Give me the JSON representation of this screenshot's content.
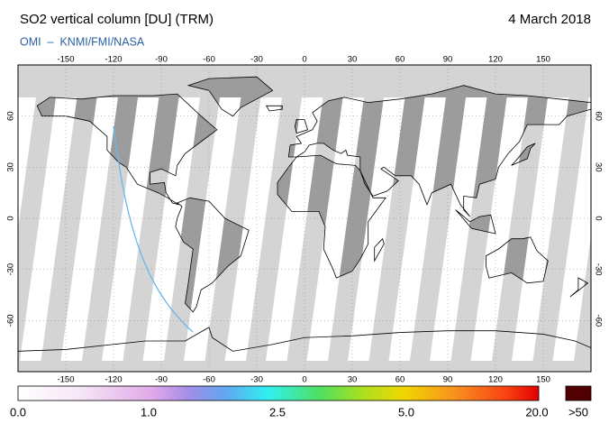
{
  "header": {
    "title": "SO2 vertical column [DU] (TRM)",
    "date": "4 March 2018",
    "credit": "OMI  –  KNMI/FMI/NASA"
  },
  "map": {
    "lon_ticks": [
      -150,
      -120,
      -90,
      -60,
      -30,
      0,
      30,
      60,
      90,
      120,
      150
    ],
    "lat_ticks": [
      60,
      30,
      0,
      -30,
      -60
    ]
  },
  "colorbar": {
    "labels": [
      "0.0",
      "1.0",
      "2.5",
      "5.0",
      "20.0",
      ">50"
    ]
  }
}
